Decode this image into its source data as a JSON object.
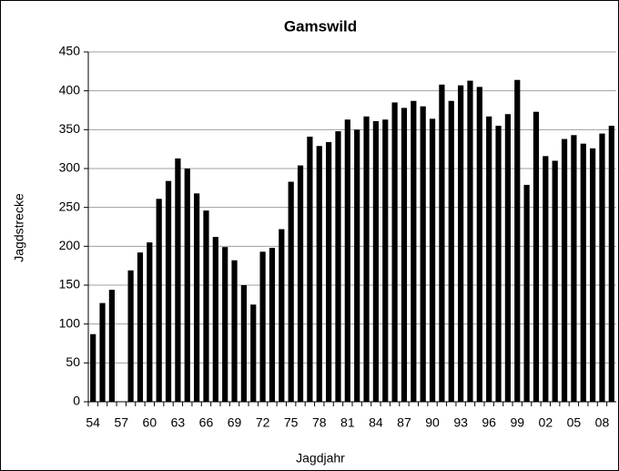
{
  "chart_data": {
    "type": "bar",
    "title": "Gamswild",
    "x_label": "Jagdjahr",
    "y_label": "Jagdstrecke",
    "categories": [
      "54",
      null,
      null,
      "57",
      null,
      null,
      "60",
      null,
      null,
      "63",
      null,
      null,
      "66",
      null,
      null,
      "69",
      null,
      null,
      "72",
      null,
      null,
      "75",
      null,
      null,
      "78",
      null,
      null,
      "81",
      null,
      null,
      "84",
      null,
      null,
      "87",
      null,
      null,
      "90",
      null,
      null,
      "93",
      null,
      null,
      "96",
      null,
      null,
      "99",
      null,
      null,
      "02",
      null,
      null,
      "05",
      null,
      null,
      "08",
      null
    ],
    "values": [
      87,
      127,
      144,
      null,
      169,
      192,
      205,
      261,
      284,
      313,
      300,
      268,
      246,
      212,
      199,
      182,
      150,
      125,
      193,
      198,
      222,
      283,
      304,
      341,
      329,
      334,
      348,
      363,
      350,
      367,
      361,
      363,
      385,
      378,
      387,
      380,
      364,
      408,
      387,
      407,
      413,
      405,
      367,
      355,
      370,
      414,
      279,
      373,
      316,
      310,
      338,
      343,
      332,
      326,
      345,
      355
    ],
    "color": "#000000",
    "ylim": [
      0,
      450
    ],
    "yticks": [
      0,
      50,
      100,
      150,
      200,
      250,
      300,
      350,
      400,
      450
    ],
    "grid": true
  }
}
